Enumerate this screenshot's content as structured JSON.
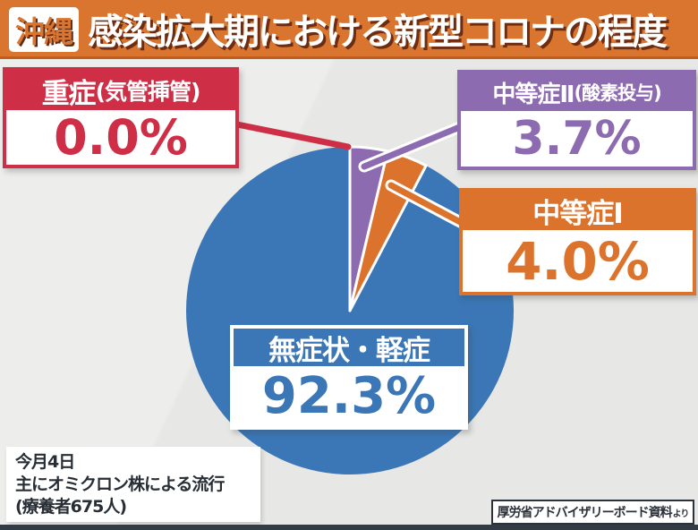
{
  "header": {
    "region_badge": "沖縄",
    "title": "感染拡大期における新型コロナの程度"
  },
  "callouts": {
    "severe": {
      "title": "重症",
      "note": "(気管挿管)",
      "value": "0.0%"
    },
    "moderate2": {
      "title": "中等症Ⅱ",
      "note": "(酸素投与)",
      "value": "3.7%"
    },
    "moderate1": {
      "title": "中等症Ⅰ",
      "note": "",
      "value": "4.0%"
    },
    "mild": {
      "title": "無症状・軽症",
      "value": "92.3%"
    }
  },
  "footnote": {
    "lines": [
      "今月4日",
      "主にオミクロン株による流行",
      "(療養者675人)"
    ]
  },
  "source": {
    "text": "厚労省アドバイザリーボード資料",
    "suffix": "より"
  },
  "colors": {
    "header_orange": "#d9752e",
    "severe_red": "#ce2f47",
    "moderate2_purple": "#8d6bb0",
    "moderate1_orange": "#dc732c",
    "mild_blue": "#3b77b6",
    "background_gray": "#e7e8e5",
    "bottom_bar_dark": "#333b44",
    "text_dark": "#272e35"
  },
  "chart_data": {
    "type": "pie",
    "title": "沖縄 感染拡大期における新型コロナの程度",
    "start_angle_deg": 0,
    "direction": "clockwise",
    "legend_position": "callout-labels",
    "slices": [
      {
        "id": "severe",
        "label": "重症(気管挿管)",
        "value": 0.0,
        "color": "#ce2f47"
      },
      {
        "id": "moderate2",
        "label": "中等症Ⅱ(酸素投与)",
        "value": 3.7,
        "color": "#8d6bb0"
      },
      {
        "id": "moderate1",
        "label": "中等症Ⅰ",
        "value": 4.0,
        "color": "#dc732c"
      },
      {
        "id": "mild",
        "label": "無症状・軽症",
        "value": 92.3,
        "color": "#3b77b6"
      }
    ]
  }
}
